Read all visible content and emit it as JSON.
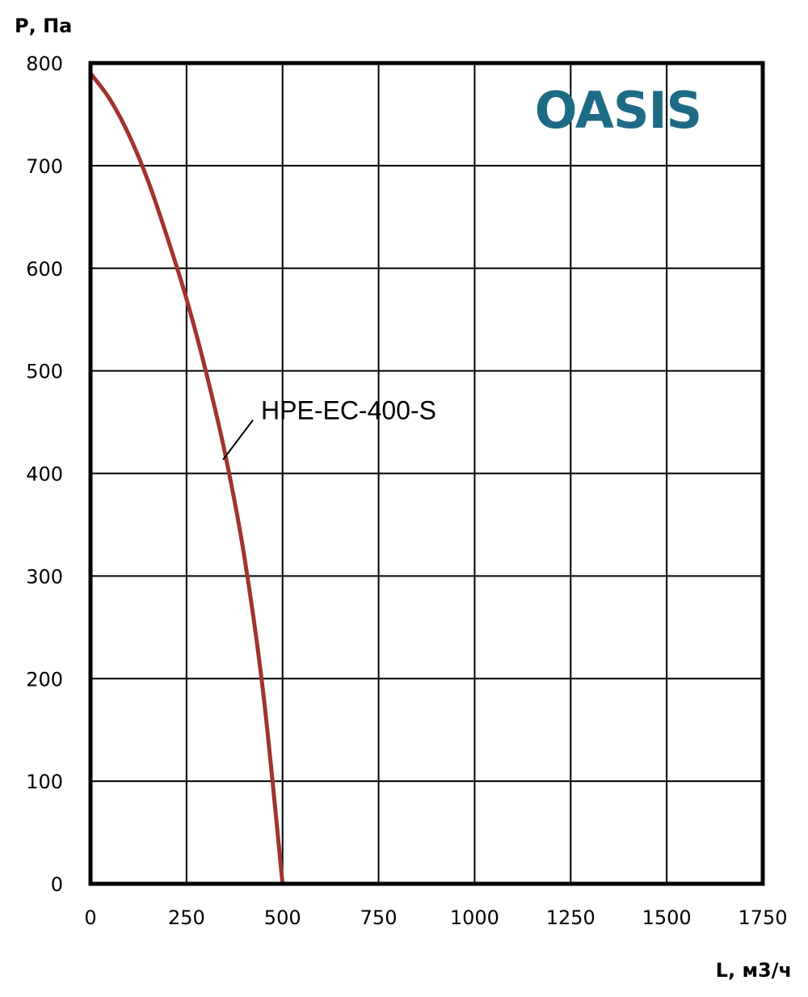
{
  "chart_data": {
    "type": "line",
    "title": "",
    "xlabel": "L, м3/ч",
    "ylabel": "Р, Па",
    "xlim": [
      0,
      1750
    ],
    "ylim": [
      0,
      800
    ],
    "x_ticks": [
      "0",
      "250",
      "500",
      "750",
      "1000",
      "1250",
      "1500",
      "1750"
    ],
    "y_ticks": [
      "0",
      "100",
      "200",
      "300",
      "400",
      "500",
      "600",
      "700",
      "800"
    ],
    "grid": true,
    "series": [
      {
        "name": "HPE-EC-400-S",
        "color": "#a0342c",
        "x": [
          0,
          50,
          100,
          150,
          200,
          250,
          300,
          350,
          400,
          450,
          500
        ],
        "y": [
          790,
          765,
          730,
          685,
          630,
          570,
          500,
          420,
          320,
          185,
          0
        ]
      }
    ],
    "annotations": [
      {
        "text": "HPE-EC-400-S",
        "points_to": {
          "x": 345,
          "y": 415
        }
      }
    ]
  },
  "logo": {
    "text": "OASIS",
    "color": "#1e6b86"
  }
}
